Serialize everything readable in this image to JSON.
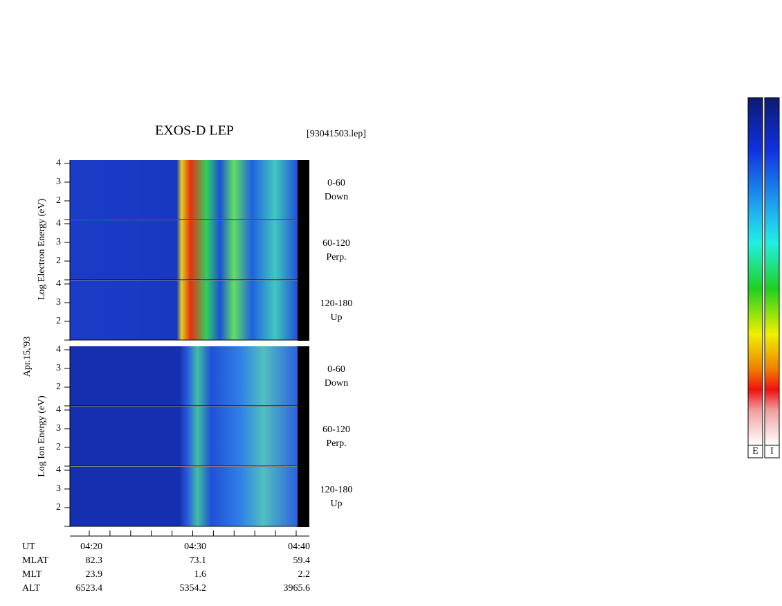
{
  "header": {
    "title": "EXOS-D LEP",
    "file": "[93041503.lep]"
  },
  "date": "Apr.15,'93",
  "energy_ticks": [
    "4",
    "3",
    "2"
  ],
  "electron": {
    "label": "Log Electron Energy (eV)",
    "panels": [
      {
        "range": "0-60",
        "direction": "Down"
      },
      {
        "range": "60-120",
        "direction": "Perp."
      },
      {
        "range": "120-180",
        "direction": "Up"
      }
    ]
  },
  "ion": {
    "label": "Log Ion Energy (eV)",
    "panels": [
      {
        "range": "0-60",
        "direction": "Down"
      },
      {
        "range": "60-120",
        "direction": "Perp."
      },
      {
        "range": "120-180",
        "direction": "Up"
      }
    ]
  },
  "footer": {
    "rows": [
      {
        "label": "UT",
        "values": [
          "04:20",
          "04:30",
          "04:40"
        ]
      },
      {
        "label": "MLAT",
        "values": [
          "82.3",
          "73.1",
          "59.4"
        ]
      },
      {
        "label": "MLT",
        "values": [
          "23.9",
          "1.6",
          "2.2"
        ]
      },
      {
        "label": "ALT",
        "values": [
          "6523.4",
          "5354.2",
          "3965.6"
        ]
      }
    ]
  },
  "colorbar": {
    "labels": [
      "E",
      "I"
    ]
  }
}
